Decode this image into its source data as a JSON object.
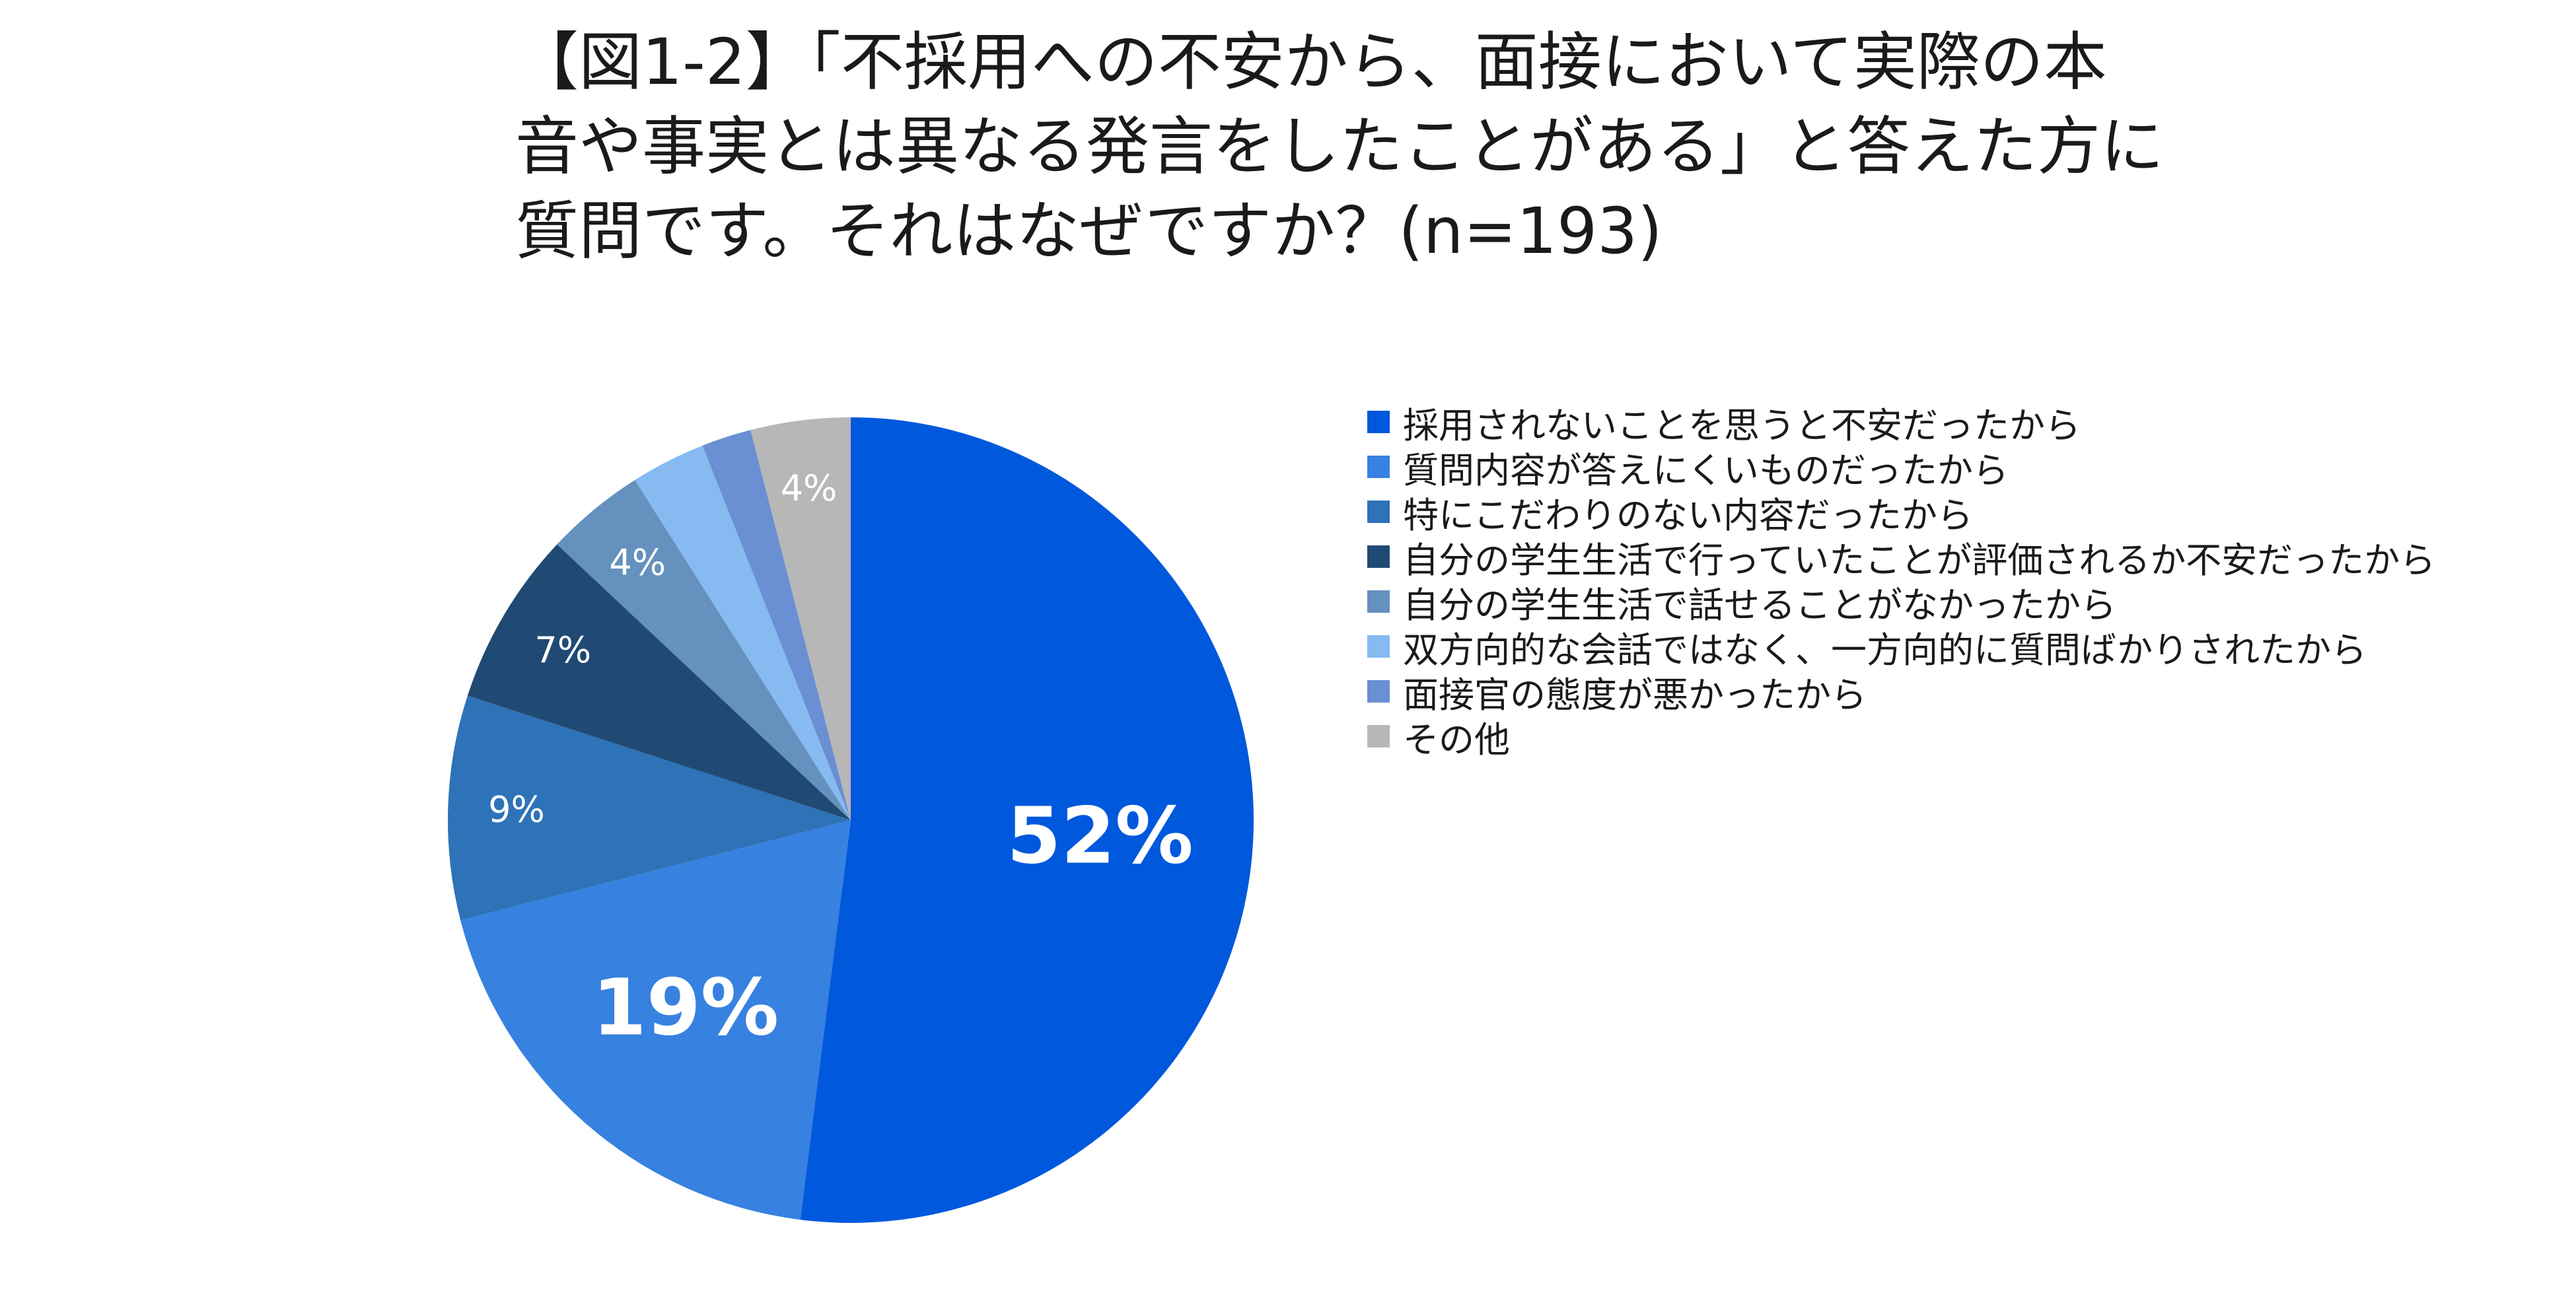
{
  "title_lines": [
    "【図1-2】「不採用への不安から、面接において実際の本",
    "音や事実とは異なる発言をしたことがある」と答えた方に",
    "質問です。それはなぜですか？(n=193)"
  ],
  "chart_data": {
    "type": "pie",
    "categories": [
      "採用されないことを思うと不安だったから",
      "質問内容が答えにくいものだったから",
      "特にこだわりのない内容だったから",
      "自分の学生生活で行っていたことが評価されるか不安だったから",
      "自分の学生生活で話せることがなかったから",
      "双方向的な会話ではなく、一方向的に質問ばかりされたから",
      "面接官の態度が悪かったから",
      "その他"
    ],
    "values": [
      52,
      19,
      9,
      7,
      4,
      3,
      2,
      4
    ],
    "data_labels": [
      "52%",
      "19%",
      "9%",
      "7%",
      "4%",
      "",
      "",
      "4%"
    ],
    "colors": [
      "#0058dd",
      "#3781e0",
      "#2e72b8",
      "#204a73",
      "#6591be",
      "#86baf0",
      "#6a8fd2",
      "#b7b7b7"
    ],
    "legend_position": "right",
    "start_angle": "top, clockwise"
  }
}
